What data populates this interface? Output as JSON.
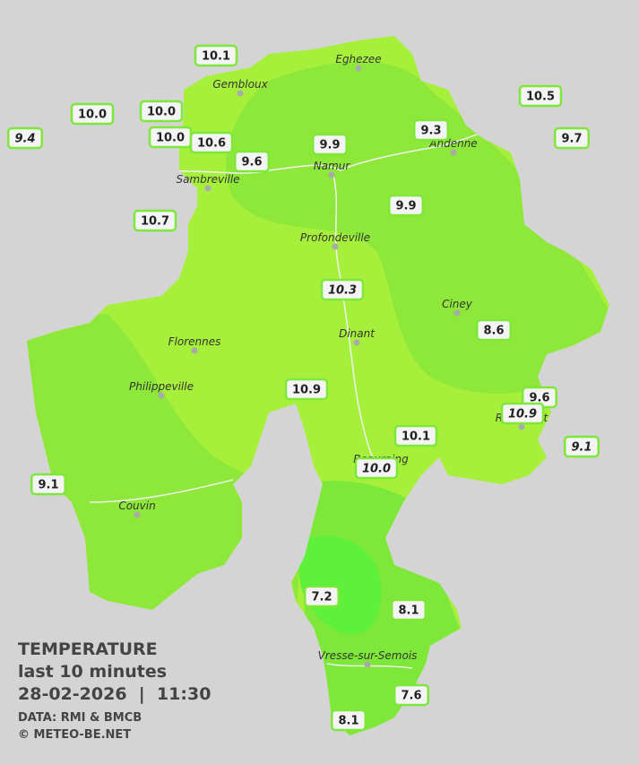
{
  "map": {
    "cities": [
      "Eghezee",
      "Gembloux",
      "Andenne",
      "Namur",
      "Sambreville",
      "Profondeville",
      "Ciney",
      "Dinant",
      "Florennes",
      "Philippeville",
      "Rochefort",
      "Beauraing",
      "Couvin",
      "Vresse-sur-Semois"
    ],
    "stations": [
      {
        "label": "10.1"
      },
      {
        "label": "10.0"
      },
      {
        "label": "9.4",
        "italic": true
      },
      {
        "label": "10.0"
      },
      {
        "label": "10.0"
      },
      {
        "label": "10.6"
      },
      {
        "label": "9.6"
      },
      {
        "label": "9.9"
      },
      {
        "label": "9.3"
      },
      {
        "label": "10.5"
      },
      {
        "label": "9.7"
      },
      {
        "label": "10.7"
      },
      {
        "label": "9.9"
      },
      {
        "label": "10.3",
        "italic": true
      },
      {
        "label": "8.6"
      },
      {
        "label": "10.9"
      },
      {
        "label": "9.6"
      },
      {
        "label": "10.9",
        "italic": true
      },
      {
        "label": "9.1",
        "italic": true
      },
      {
        "label": "10.1"
      },
      {
        "label": "10.0",
        "italic": true
      },
      {
        "label": "9.1"
      },
      {
        "label": "7.2"
      },
      {
        "label": "8.1"
      },
      {
        "label": "7.6"
      },
      {
        "label": "8.1"
      }
    ]
  },
  "legend": {
    "title": "TEMPERATURE",
    "subtitle": "last 10 minutes",
    "datetime": "28-02-2026  |  11:30",
    "source": "DATA: RMI & BMCB",
    "credit": "© METEO-BE.NET"
  }
}
